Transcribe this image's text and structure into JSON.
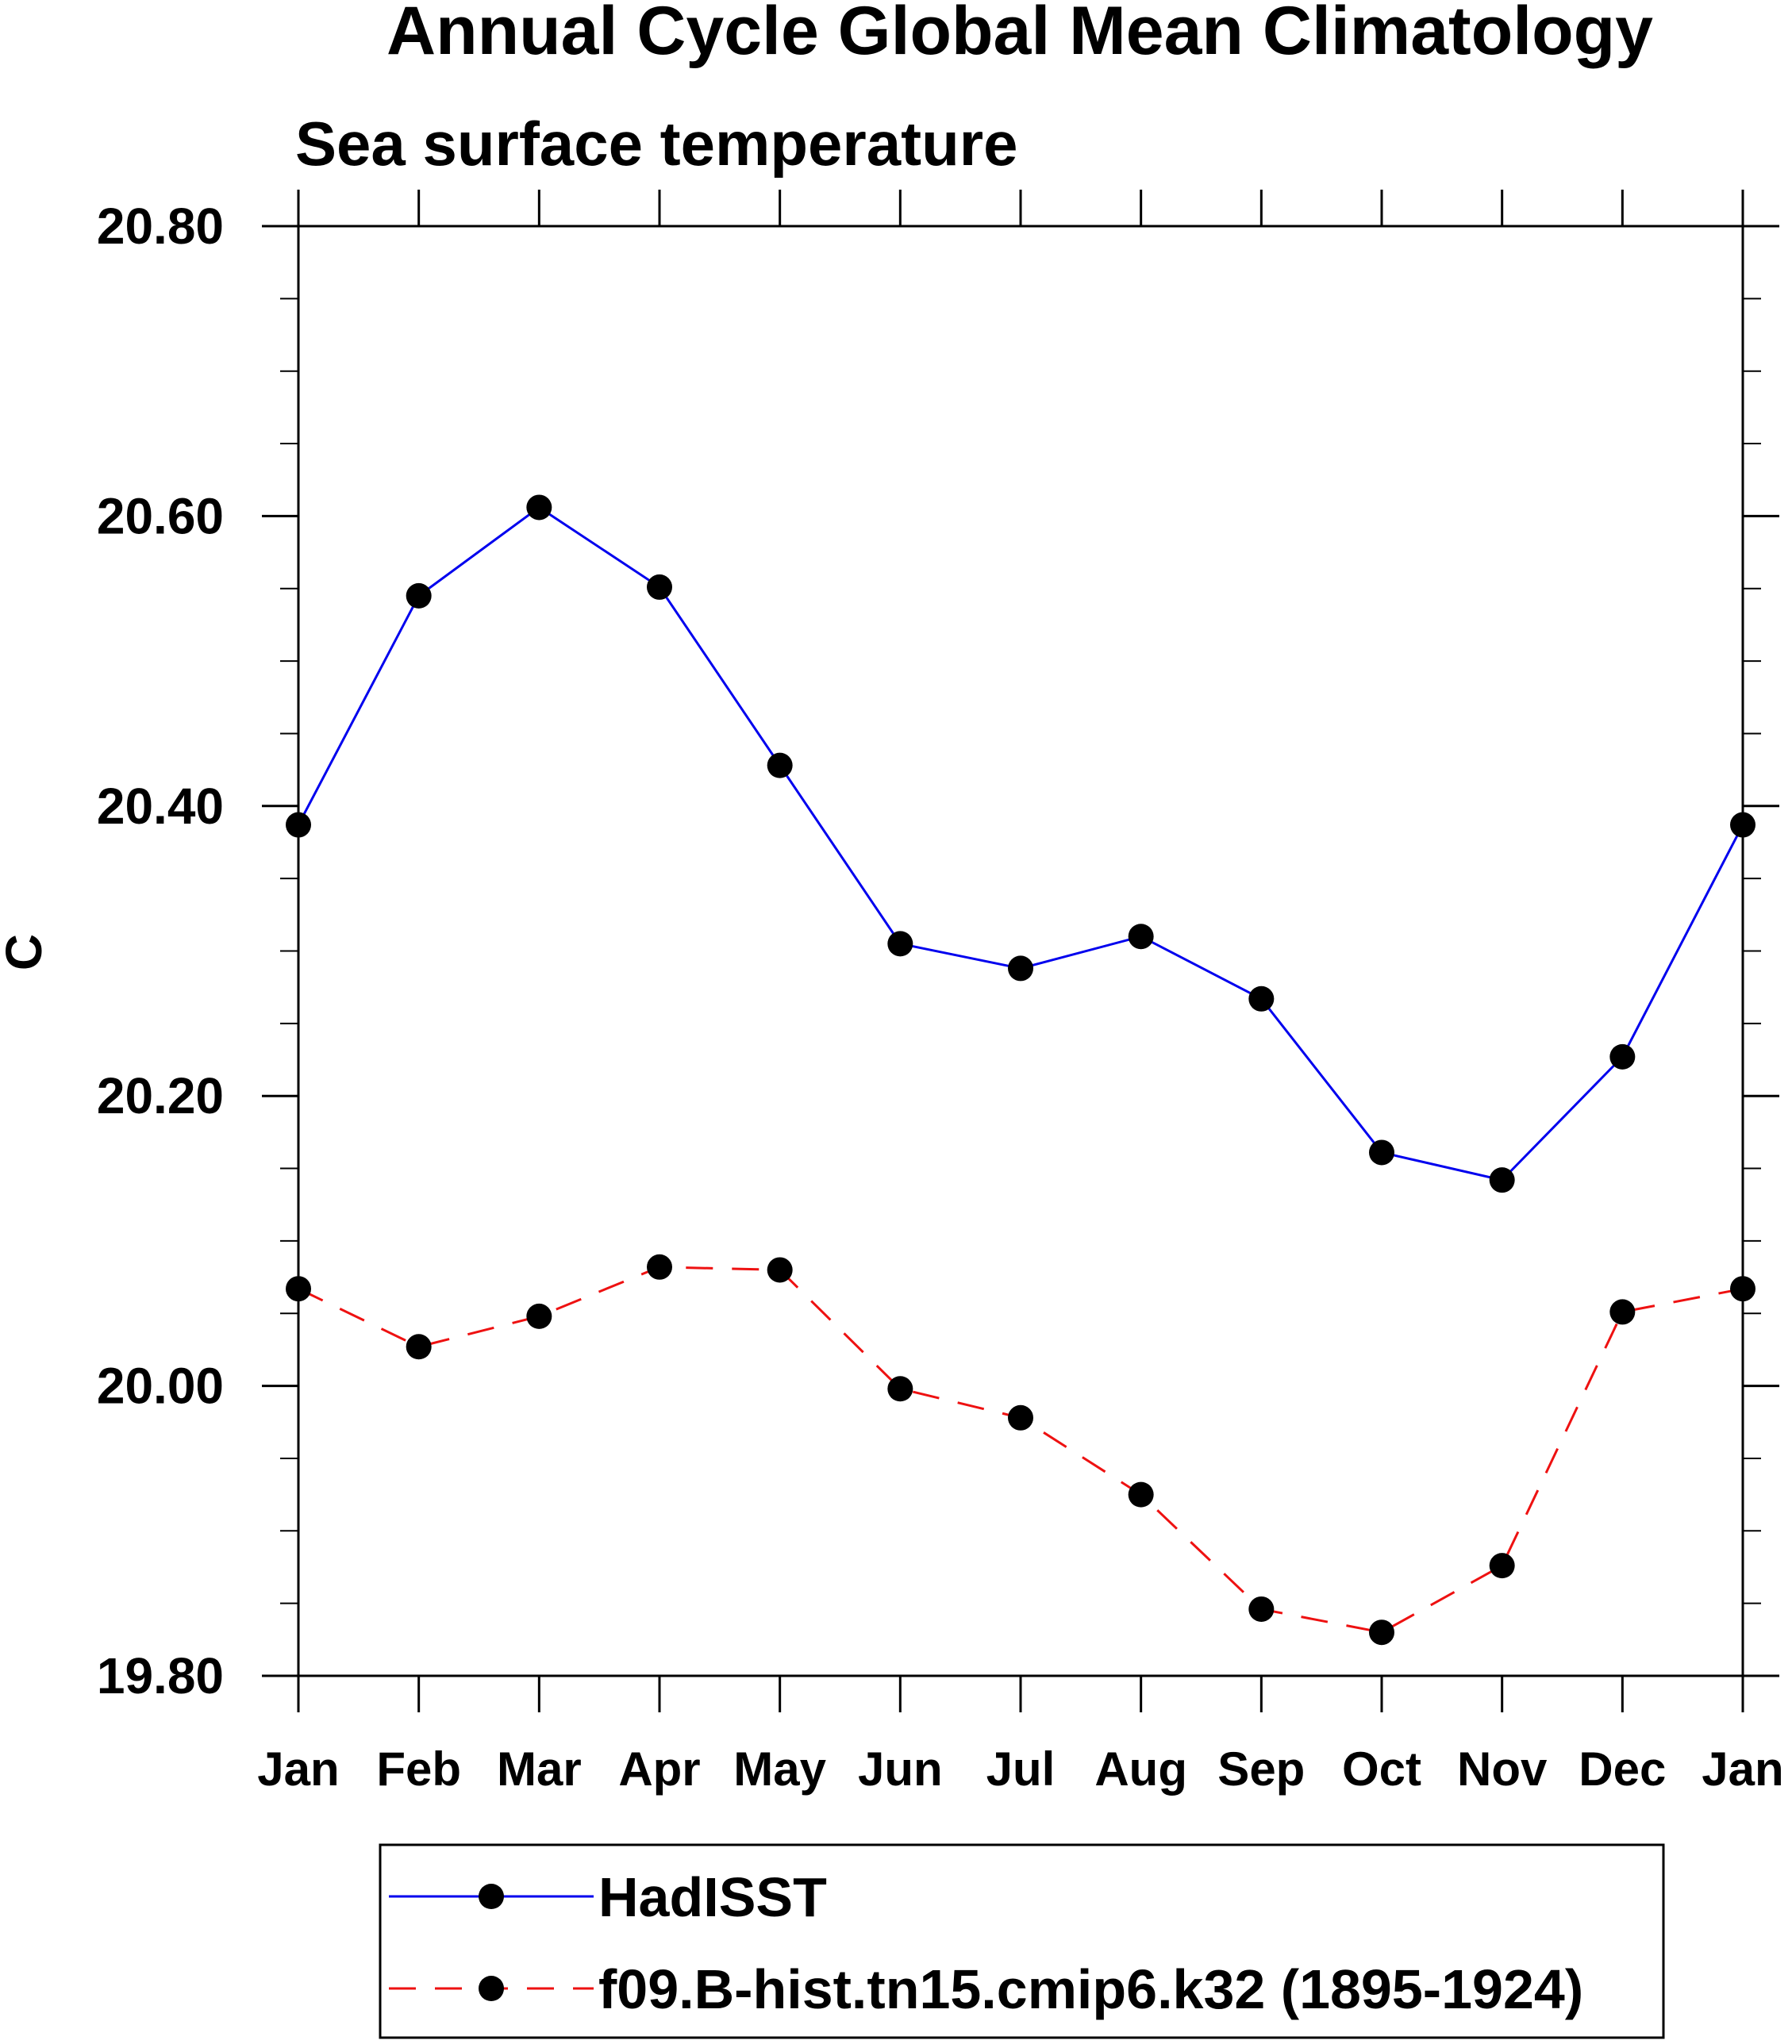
{
  "chart_data": {
    "type": "line",
    "title": "Annual Cycle Global Mean Climatology",
    "subtitle": "Sea surface temperature",
    "xlabel": "",
    "ylabel": "C",
    "categories": [
      "Jan",
      "Feb",
      "Mar",
      "Apr",
      "May",
      "Jun",
      "Jul",
      "Aug",
      "Sep",
      "Oct",
      "Nov",
      "Dec",
      "Jan"
    ],
    "ylim": [
      19.8,
      20.8
    ],
    "yticks": [
      19.8,
      20.0,
      20.2,
      20.4,
      20.6,
      20.8
    ],
    "ytick_labels": [
      "19.80",
      "20.00",
      "20.20",
      "20.40",
      "20.60",
      "20.80"
    ],
    "grid": false,
    "legend_position": "bottom",
    "series": [
      {
        "name": "HadISST",
        "color": "#0000ee",
        "line_style": "solid",
        "marker": "filled-circle",
        "values": [
          20.387,
          20.545,
          20.606,
          20.551,
          20.428,
          20.305,
          20.288,
          20.31,
          20.267,
          20.161,
          20.142,
          20.227,
          20.387
        ]
      },
      {
        "name": "f09.B-hist.tn15.cmip6.k32 (1895-1924)",
        "color": "#ee1111",
        "line_style": "dashed",
        "marker": "filled-circle",
        "values": [
          20.067,
          20.027,
          20.048,
          20.082,
          20.08,
          19.998,
          19.978,
          19.925,
          19.846,
          19.83,
          19.876,
          20.051,
          20.067
        ]
      }
    ]
  }
}
